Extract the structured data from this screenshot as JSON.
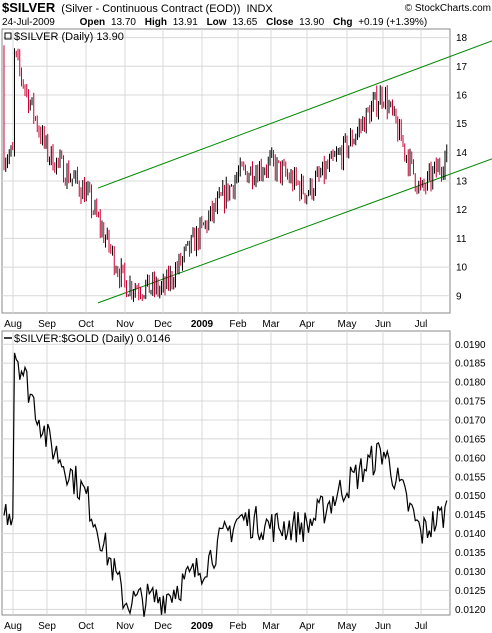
{
  "header": {
    "symbol": "$SILVER",
    "description": "(Silver - Continuous Contract (EOD))",
    "exchange": "INDX",
    "watermark": "© StockCharts.com",
    "date": "24-Jul-2009",
    "open_label": "Open",
    "open": "13.70",
    "high_label": "High",
    "high": "13.91",
    "low_label": "Low",
    "low": "13.65",
    "close_label": "Close",
    "close": "13.90",
    "chg_label": "Chg",
    "chg": "+0.19 (+1.39%)"
  },
  "colors": {
    "up": "#000000",
    "down": "#cc0033",
    "channel": "#008800",
    "grid": "#d8d8d8"
  },
  "chart_data": [
    {
      "type": "line",
      "legend": "$SILVER (Daily) 13.90",
      "x": [
        "Aug",
        "Sep",
        "Oct",
        "Nov",
        "Dec",
        "2009",
        "Feb",
        "Mar",
        "Apr",
        "May",
        "Jun",
        "Jul",
        "Jul 24"
      ],
      "y": [
        17.5,
        14.0,
        12.6,
        9.4,
        9.2,
        11.3,
        13.2,
        13.6,
        12.6,
        14.2,
        16.1,
        12.6,
        13.9
      ],
      "yticks": [
        9,
        10,
        11,
        12,
        13,
        14,
        15,
        16,
        17,
        18
      ],
      "ylim": [
        8.4,
        18.3
      ],
      "channel_lines": [
        {
          "x": [
            "Oct",
            "Jul 24"
          ],
          "y": [
            12.6,
            17.3
          ]
        },
        {
          "x": [
            "Oct",
            "Jul 24"
          ],
          "y": [
            8.6,
            13.2
          ]
        }
      ]
    },
    {
      "type": "line",
      "legend": "$SILVER:$GOLD (Daily) 0.0146",
      "x": [
        "Aug",
        "Sep",
        "Oct",
        "Nov",
        "Dec",
        "2009",
        "Feb",
        "Mar",
        "Apr",
        "May",
        "Jun",
        "Jul",
        "Jul 24"
      ],
      "y": [
        0.019,
        0.0165,
        0.015,
        0.0122,
        0.0123,
        0.0131,
        0.0144,
        0.0142,
        0.0142,
        0.0153,
        0.0162,
        0.014,
        0.0146
      ],
      "yticks": [
        0.012,
        0.0125,
        0.013,
        0.0135,
        0.014,
        0.0145,
        0.015,
        0.0155,
        0.016,
        0.0165,
        0.017,
        0.0175,
        0.018,
        0.0185,
        0.019
      ],
      "ylim": [
        0.01185,
        0.01935
      ]
    }
  ],
  "x_ticks": [
    "Aug",
    "Sep",
    "Oct",
    "Nov",
    "Dec",
    "2009",
    "Feb",
    "Mar",
    "Apr",
    "May",
    "Jun",
    "Jul"
  ],
  "y_tick_labels_top": [
    "9",
    "10",
    "11",
    "12",
    "13",
    "14",
    "15",
    "16",
    "17",
    "18"
  ],
  "y_tick_labels_bottom": [
    "0.0120",
    "0.0125",
    "0.0130",
    "0.0135",
    "0.0140",
    "0.0145",
    "0.0150",
    "0.0155",
    "0.0160",
    "0.0165",
    "0.0170",
    "0.0175",
    "0.0180",
    "0.0185",
    "0.0190"
  ]
}
